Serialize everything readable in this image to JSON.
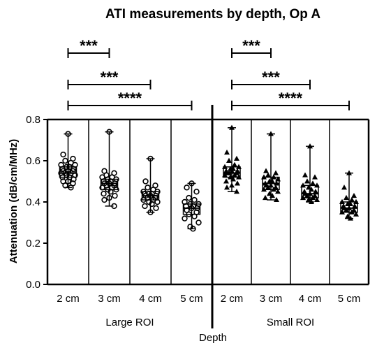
{
  "chart_data": {
    "type": "box",
    "title": "ATI measurements by depth, Op A",
    "xlabel": "Depth",
    "ylabel": "Attenuation (dB/cm/MHz)",
    "ylim": [
      0.0,
      0.8
    ],
    "yticks": [
      "0.0",
      "0.2",
      "0.4",
      "0.6",
      "0.8"
    ],
    "groups": [
      {
        "label": "Large ROI",
        "marker": "circle",
        "categories": [
          {
            "label": "2 cm",
            "min": 0.47,
            "q1": 0.52,
            "median": 0.54,
            "q3": 0.57,
            "max": 0.73,
            "points": [
              0.73,
              0.63,
              0.61,
              0.6,
              0.59,
              0.58,
              0.58,
              0.57,
              0.57,
              0.56,
              0.56,
              0.55,
              0.55,
              0.55,
              0.54,
              0.54,
              0.54,
              0.53,
              0.53,
              0.52,
              0.52,
              0.51,
              0.5,
              0.5,
              0.49,
              0.48,
              0.47
            ]
          },
          {
            "label": "3 cm",
            "min": 0.38,
            "q1": 0.46,
            "median": 0.49,
            "q3": 0.51,
            "max": 0.74,
            "points": [
              0.74,
              0.55,
              0.54,
              0.53,
              0.52,
              0.52,
              0.51,
              0.51,
              0.5,
              0.5,
              0.49,
              0.49,
              0.49,
              0.48,
              0.48,
              0.47,
              0.47,
              0.46,
              0.46,
              0.45,
              0.44,
              0.43,
              0.42,
              0.41,
              0.38
            ]
          },
          {
            "label": "4 cm",
            "min": 0.35,
            "q1": 0.41,
            "median": 0.43,
            "q3": 0.45,
            "max": 0.61,
            "points": [
              0.61,
              0.5,
              0.48,
              0.47,
              0.46,
              0.45,
              0.45,
              0.44,
              0.44,
              0.44,
              0.43,
              0.43,
              0.43,
              0.42,
              0.42,
              0.41,
              0.41,
              0.4,
              0.4,
              0.39,
              0.38,
              0.37,
              0.35
            ]
          },
          {
            "label": "5 cm",
            "min": 0.27,
            "q1": 0.34,
            "median": 0.37,
            "q3": 0.39,
            "max": 0.49,
            "points": [
              0.49,
              0.47,
              0.45,
              0.42,
              0.41,
              0.4,
              0.39,
              0.39,
              0.38,
              0.38,
              0.37,
              0.37,
              0.36,
              0.35,
              0.34,
              0.33,
              0.32,
              0.3,
              0.28,
              0.27
            ]
          }
        ]
      },
      {
        "label": "Small  ROI",
        "marker": "triangle",
        "categories": [
          {
            "label": "2 cm",
            "min": 0.45,
            "q1": 0.52,
            "median": 0.54,
            "q3": 0.57,
            "max": 0.76,
            "points": [
              0.76,
              0.64,
              0.61,
              0.6,
              0.58,
              0.57,
              0.57,
              0.56,
              0.56,
              0.55,
              0.55,
              0.55,
              0.54,
              0.54,
              0.54,
              0.53,
              0.53,
              0.52,
              0.52,
              0.51,
              0.5,
              0.49,
              0.48,
              0.47,
              0.45
            ]
          },
          {
            "label": "3 cm",
            "min": 0.41,
            "q1": 0.46,
            "median": 0.49,
            "q3": 0.52,
            "max": 0.73,
            "points": [
              0.73,
              0.55,
              0.54,
              0.53,
              0.52,
              0.52,
              0.51,
              0.5,
              0.5,
              0.49,
              0.49,
              0.48,
              0.48,
              0.47,
              0.47,
              0.46,
              0.46,
              0.45,
              0.44,
              0.43,
              0.42,
              0.41
            ]
          },
          {
            "label": "4 cm",
            "min": 0.4,
            "q1": 0.42,
            "median": 0.44,
            "q3": 0.48,
            "max": 0.67,
            "points": [
              0.67,
              0.53,
              0.52,
              0.5,
              0.49,
              0.48,
              0.48,
              0.47,
              0.46,
              0.45,
              0.45,
              0.44,
              0.44,
              0.43,
              0.43,
              0.42,
              0.42,
              0.41,
              0.41,
              0.4
            ]
          },
          {
            "label": "5 cm",
            "min": 0.32,
            "q1": 0.35,
            "median": 0.37,
            "q3": 0.4,
            "max": 0.54,
            "points": [
              0.54,
              0.47,
              0.43,
              0.42,
              0.41,
              0.4,
              0.4,
              0.39,
              0.39,
              0.38,
              0.38,
              0.37,
              0.37,
              0.36,
              0.36,
              0.35,
              0.35,
              0.34,
              0.33,
              0.32
            ]
          }
        ]
      }
    ],
    "significance": [
      {
        "group": 0,
        "from": 0,
        "to": 1,
        "label": "***"
      },
      {
        "group": 0,
        "from": 0,
        "to": 2,
        "label": "***"
      },
      {
        "group": 0,
        "from": 0,
        "to": 3,
        "label": "****"
      },
      {
        "group": 1,
        "from": 0,
        "to": 1,
        "label": "***"
      },
      {
        "group": 1,
        "from": 0,
        "to": 2,
        "label": "***"
      },
      {
        "group": 1,
        "from": 0,
        "to": 3,
        "label": "****"
      }
    ]
  }
}
